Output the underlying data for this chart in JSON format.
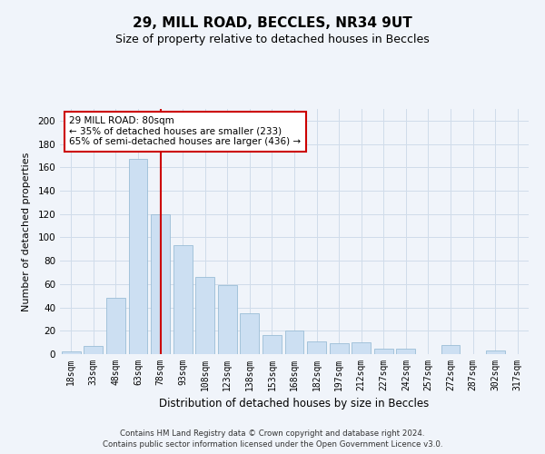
{
  "title": "29, MILL ROAD, BECCLES, NR34 9UT",
  "subtitle": "Size of property relative to detached houses in Beccles",
  "xlabel": "Distribution of detached houses by size in Beccles",
  "ylabel": "Number of detached properties",
  "bar_labels": [
    "18sqm",
    "33sqm",
    "48sqm",
    "63sqm",
    "78sqm",
    "93sqm",
    "108sqm",
    "123sqm",
    "138sqm",
    "153sqm",
    "168sqm",
    "182sqm",
    "197sqm",
    "212sqm",
    "227sqm",
    "242sqm",
    "257sqm",
    "272sqm",
    "287sqm",
    "302sqm",
    "317sqm"
  ],
  "bar_values": [
    2,
    7,
    48,
    167,
    120,
    93,
    66,
    59,
    35,
    16,
    20,
    11,
    9,
    10,
    5,
    5,
    0,
    8,
    0,
    3,
    0
  ],
  "bar_color": "#ccdff2",
  "bar_edge_color": "#9bbdd6",
  "grid_color": "#d0dcea",
  "vline_x": 4,
  "vline_color": "#cc0000",
  "annotation_title": "29 MILL ROAD: 80sqm",
  "annotation_line1": "← 35% of detached houses are smaller (233)",
  "annotation_line2": "65% of semi-detached houses are larger (436) →",
  "annotation_box_color": "#ffffff",
  "annotation_box_edge": "#cc0000",
  "ylim": [
    0,
    210
  ],
  "yticks": [
    0,
    20,
    40,
    60,
    80,
    100,
    120,
    140,
    160,
    180,
    200
  ],
  "footer1": "Contains HM Land Registry data © Crown copyright and database right 2024.",
  "footer2": "Contains public sector information licensed under the Open Government Licence v3.0.",
  "background_color": "#f0f4fa",
  "title_fontsize": 11,
  "subtitle_fontsize": 9
}
